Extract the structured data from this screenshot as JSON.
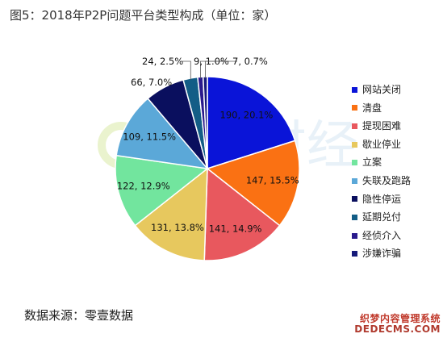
{
  "chart_data": {
    "type": "pie",
    "title": "图5：2018年P2P问题平台类型构成（单位：家）",
    "series": [
      {
        "name": "网站关闭",
        "value": 190,
        "label": "190, 20.1%",
        "color": "#0a14d8"
      },
      {
        "name": "清盘",
        "value": 147,
        "label": "147, 15.5%",
        "color": "#fa7113"
      },
      {
        "name": "提现困难",
        "value": 141,
        "label": "141, 14.9%",
        "color": "#e8585e"
      },
      {
        "name": "歇业停业",
        "value": 131,
        "label": "131, 13.8%",
        "color": "#e7c85e"
      },
      {
        "name": "立案",
        "value": 122,
        "label": "122, 12.9%",
        "color": "#72e59e"
      },
      {
        "name": "失联及跑路",
        "value": 109,
        "label": "109, 11.5%",
        "color": "#5ba8d8"
      },
      {
        "name": "隐性停运",
        "value": 66,
        "label": "66, 7.0%",
        "color": "#0a0f5e"
      },
      {
        "name": "延期兑付",
        "value": 24,
        "label": "24, 2.5%",
        "color": "#135d86"
      },
      {
        "name": "经侦介入",
        "value": 9,
        "label": "9, 1.0%",
        "color": "#2a1a8c"
      },
      {
        "name": "涉嫌诈骗",
        "value": 7,
        "label": "7, 0.7%",
        "color": "#161a7a"
      }
    ],
    "legend_position": "right"
  },
  "source": "数据来源：零壹数据",
  "watermark_text": "零壹财经",
  "badge": {
    "line1": "织梦内容管理系统",
    "line2": "DEDECMS.COM"
  }
}
